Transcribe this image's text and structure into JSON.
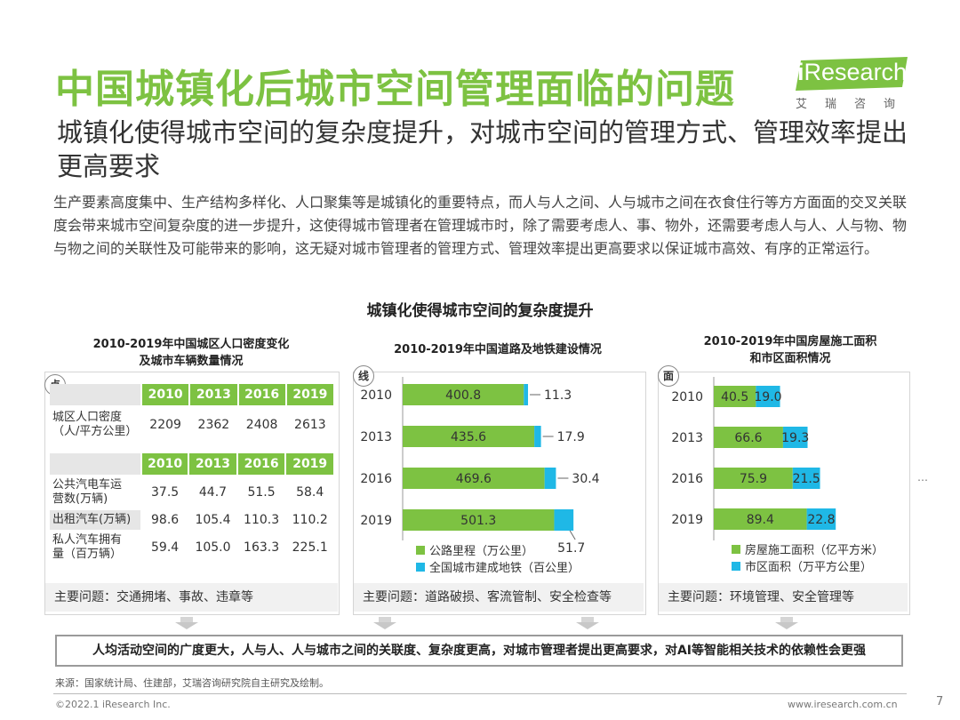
{
  "header": {
    "title": "中国城镇化后城市空间管理面临的问题",
    "logo_text_i": "i",
    "logo_text_rest": "Research",
    "logo_sub": "艾瑞咨询"
  },
  "subtitle": "城镇化使得城市空间的复杂度提升，对城市空间的管理方式、管理效率提出更高要求",
  "intro": "生产要素高度集中、生产结构多样化、人口聚集等是城镇化的重要特点，而人与人之间、人与城市之间在衣食住行等方方面面的交叉关联度会带来城市空间复杂度的进一步提升，这使得城市管理者在管理城市时，除了需要考虑人、事、物外，还需要考虑人与人、人与物、物与物之间的关联性及可能带来的影响，这无疑对城市管理者的管理方式、管理效率提出更高要求以保证城市高效、有序的正常运行。",
  "section_title": "城镇化使得城市空间的复杂度提升",
  "colors": {
    "green": "#7dc242",
    "cyan": "#1fb8e6",
    "gray_box": "#f1f1f1"
  },
  "panel1": {
    "title_line1": "2010-2019年中国城区人口密度变化",
    "title_line2": "及城市车辆数量情况",
    "badge": "点",
    "years": [
      "2010",
      "2013",
      "2016",
      "2019"
    ],
    "density": {
      "label_line1": "城区人口密度",
      "label_line2": "（人/平方公里）",
      "values": [
        "2209",
        "2362",
        "2408",
        "2613"
      ]
    },
    "rows": [
      {
        "label_line1": "公共汽电车运",
        "label_line2": "营数(万辆)",
        "values": [
          "37.5",
          "44.7",
          "51.5",
          "58.4"
        ]
      },
      {
        "label_line1": "出租汽车(万辆)",
        "label_line2": "",
        "values": [
          "98.6",
          "105.4",
          "110.3",
          "110.2"
        ]
      },
      {
        "label_line1": "私人汽车拥有",
        "label_line2": "量（百万辆）",
        "values": [
          "59.4",
          "105.0",
          "163.3",
          "225.1"
        ]
      }
    ],
    "issue": "主要问题：交通拥堵、事故、违章等"
  },
  "chart_data": [
    {
      "type": "bar",
      "orientation": "horizontal",
      "stacked": true,
      "title": "2010-2019年中国道路及地铁建设情况",
      "categories": [
        "2010",
        "2013",
        "2016",
        "2019"
      ],
      "series": [
        {
          "name": "公路里程（万公里）",
          "values": [
            400.8,
            435.6,
            469.6,
            501.3
          ]
        },
        {
          "name": "全国城市建成地铁（百公里）",
          "values": [
            11.3,
            17.9,
            30.4,
            51.7
          ]
        }
      ]
    },
    {
      "type": "bar",
      "orientation": "horizontal",
      "stacked": true,
      "title": "2010-2019年中国房屋施工面积和市区面积情况",
      "categories": [
        "2010",
        "2013",
        "2016",
        "2019"
      ],
      "series": [
        {
          "name": "房屋施工面积（亿平方米）",
          "values": [
            40.5,
            66.6,
            75.9,
            89.4
          ]
        },
        {
          "name": "市区面积（万平方公里）",
          "values": [
            19.0,
            19.3,
            21.5,
            22.8
          ]
        }
      ]
    }
  ],
  "panel2": {
    "title": "2010-2019年中国道路及地铁建设情况",
    "badge": "线",
    "issue": "主要问题：道路破损、客流管制、安全检查等"
  },
  "panel3": {
    "title_line1": "2010-2019年中国房屋施工面积",
    "title_line2": "和市区面积情况",
    "badge": "面",
    "issue": "主要问题：环境管理、安全管理等"
  },
  "conclusion": "人均活动空间的广度更大，人与人、人与城市之间的关联度、复杂度更高，对城市管理者提出更高要求，对AI等智能相关技术的依赖性会更强",
  "source": "来源：国家统计局、住建部，艾瑞咨询研究院自主研究及绘制。",
  "footer": {
    "copyright": "©2022.1 iResearch Inc.",
    "url": "www.iresearch.com.cn",
    "page": "7",
    "ellipsis": "…"
  }
}
